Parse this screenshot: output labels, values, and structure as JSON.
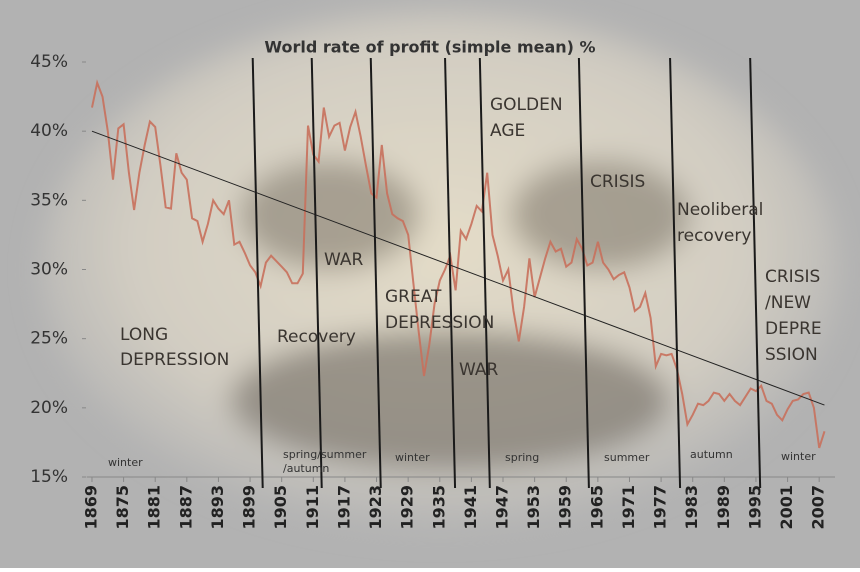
{
  "chart_data": {
    "type": "line",
    "title": "World rate of profit (simple mean) %",
    "x": [
      1869,
      1870,
      1871,
      1872,
      1873,
      1874,
      1875,
      1876,
      1877,
      1878,
      1879,
      1880,
      1881,
      1882,
      1883,
      1884,
      1885,
      1886,
      1887,
      1888,
      1889,
      1890,
      1891,
      1892,
      1893,
      1894,
      1895,
      1896,
      1897,
      1898,
      1899,
      1900,
      1901,
      1902,
      1903,
      1904,
      1905,
      1906,
      1907,
      1908,
      1909,
      1910,
      1911,
      1912,
      1913,
      1914,
      1915,
      1916,
      1917,
      1918,
      1919,
      1920,
      1921,
      1922,
      1923,
      1924,
      1925,
      1926,
      1927,
      1928,
      1929,
      1930,
      1931,
      1932,
      1933,
      1934,
      1935,
      1936,
      1937,
      1938,
      1939,
      1940,
      1941,
      1942,
      1943,
      1944,
      1945,
      1946,
      1947,
      1948,
      1949,
      1950,
      1951,
      1952,
      1953,
      1954,
      1955,
      1956,
      1957,
      1958,
      1959,
      1960,
      1961,
      1962,
      1963,
      1964,
      1965,
      1966,
      1967,
      1968,
      1969,
      1970,
      1971,
      1972,
      1973,
      1974,
      1975,
      1976,
      1977,
      1978,
      1979,
      1980,
      1981,
      1982,
      1983,
      1984,
      1985,
      1986,
      1987,
      1988,
      1989,
      1990,
      1991,
      1992,
      1993,
      1994,
      1995,
      1996,
      1997,
      1998,
      1999,
      2000,
      2001,
      2002,
      2003,
      2004,
      2005,
      2006,
      2007,
      2008
    ],
    "series": [
      {
        "color": "#c8705c",
        "values": [
          41.7,
          43.5,
          42.5,
          40,
          36.5,
          40.2,
          40.5,
          37,
          34.3,
          37,
          39,
          40.7,
          40.3,
          37.5,
          34.5,
          34.4,
          38.4,
          37,
          36.5,
          33.7,
          33.5,
          32,
          33.3,
          35,
          34.4,
          34,
          35,
          31.8,
          32,
          31.2,
          30.3,
          29.8,
          28.8,
          30.5,
          31,
          30.6,
          30.2,
          29.8,
          29,
          29,
          29.7,
          40.4,
          38.3,
          37.8,
          41.7,
          39.6,
          40.4,
          40.6,
          38.6,
          40.3,
          41.4,
          39.6,
          37.5,
          35.5,
          35.2,
          39,
          35.5,
          34,
          33.7,
          33.5,
          32.5,
          29,
          25.5,
          22.3,
          24.5,
          27.5,
          29.2,
          30,
          31,
          28.5,
          32.8,
          32.2,
          33.3,
          34.6,
          34.2,
          37,
          32.5,
          31,
          29.2,
          30,
          27,
          24.8,
          27.3,
          30.8,
          28,
          29.4,
          30.8,
          32,
          31.3,
          31.5,
          30.2,
          30.5,
          32.2,
          31.5,
          30.3,
          30.5,
          32,
          30.5,
          30,
          29.3,
          29.6,
          29.8,
          28.7,
          27,
          27.3,
          28.3,
          26.5,
          23,
          23.9,
          23.8,
          23.9,
          22.8,
          21,
          18.8,
          19.5,
          20.3,
          20.2,
          20.5,
          21.1,
          21,
          20.5,
          21,
          20.5,
          20.2,
          20.8,
          21.4,
          21.2,
          21.6,
          20.5,
          20.3,
          19.5,
          19.1,
          19.9,
          20.5,
          20.6,
          21,
          21.1,
          20,
          17.1,
          18.3
        ]
      }
    ],
    "trendline": {
      "x": [
        1869,
        2008
      ],
      "values": [
        40,
        20.2
      ]
    },
    "dividers": [
      1901.4,
      1912.6,
      1923.8,
      1937.9,
      1944.5,
      1963.3,
      1980.6,
      1995.8
    ],
    "xlim": [
      1868,
      2010
    ],
    "xticks": [
      1869,
      1875,
      1881,
      1887,
      1893,
      1899,
      1905,
      1911,
      1917,
      1923,
      1929,
      1935,
      1941,
      1947,
      1953,
      1959,
      1965,
      1971,
      1977,
      1983,
      1989,
      1995,
      2001,
      2007
    ],
    "ylim": [
      15,
      45
    ],
    "yticks": [
      {
        "value": 15,
        "label": "15%"
      },
      {
        "value": 20,
        "label": "20%"
      },
      {
        "value": 25,
        "label": "25%"
      },
      {
        "value": 30,
        "label": "30%"
      },
      {
        "value": 35,
        "label": "35%"
      },
      {
        "value": 40,
        "label": "40%"
      },
      {
        "value": 45,
        "label": "45%"
      }
    ],
    "annotations": [
      {
        "lines": [
          "LONG",
          "DEPRESSION"
        ]
      },
      {
        "lines": [
          "Recovery"
        ]
      },
      {
        "lines": [
          "WAR"
        ]
      },
      {
        "lines": [
          "GREAT",
          "DEPRESSION"
        ]
      },
      {
        "lines": [
          "WAR"
        ]
      },
      {
        "lines": [
          "GOLDEN",
          "AGE"
        ]
      },
      {
        "lines": [
          "CRISIS"
        ]
      },
      {
        "lines": [
          "Neoliberal",
          "recovery"
        ]
      },
      {
        "lines": [
          "CRISIS",
          "/NEW",
          "DEPRE",
          "SSION"
        ]
      }
    ],
    "seasons": [
      {
        "lines": [
          "winter"
        ]
      },
      {
        "lines": [
          "spring/summer",
          "/autumn"
        ]
      },
      {
        "lines": [
          "winter"
        ]
      },
      {
        "lines": [
          "spring"
        ]
      },
      {
        "lines": [
          "summer"
        ]
      },
      {
        "lines": [
          "autumn"
        ]
      },
      {
        "lines": [
          "winter"
        ]
      }
    ]
  }
}
